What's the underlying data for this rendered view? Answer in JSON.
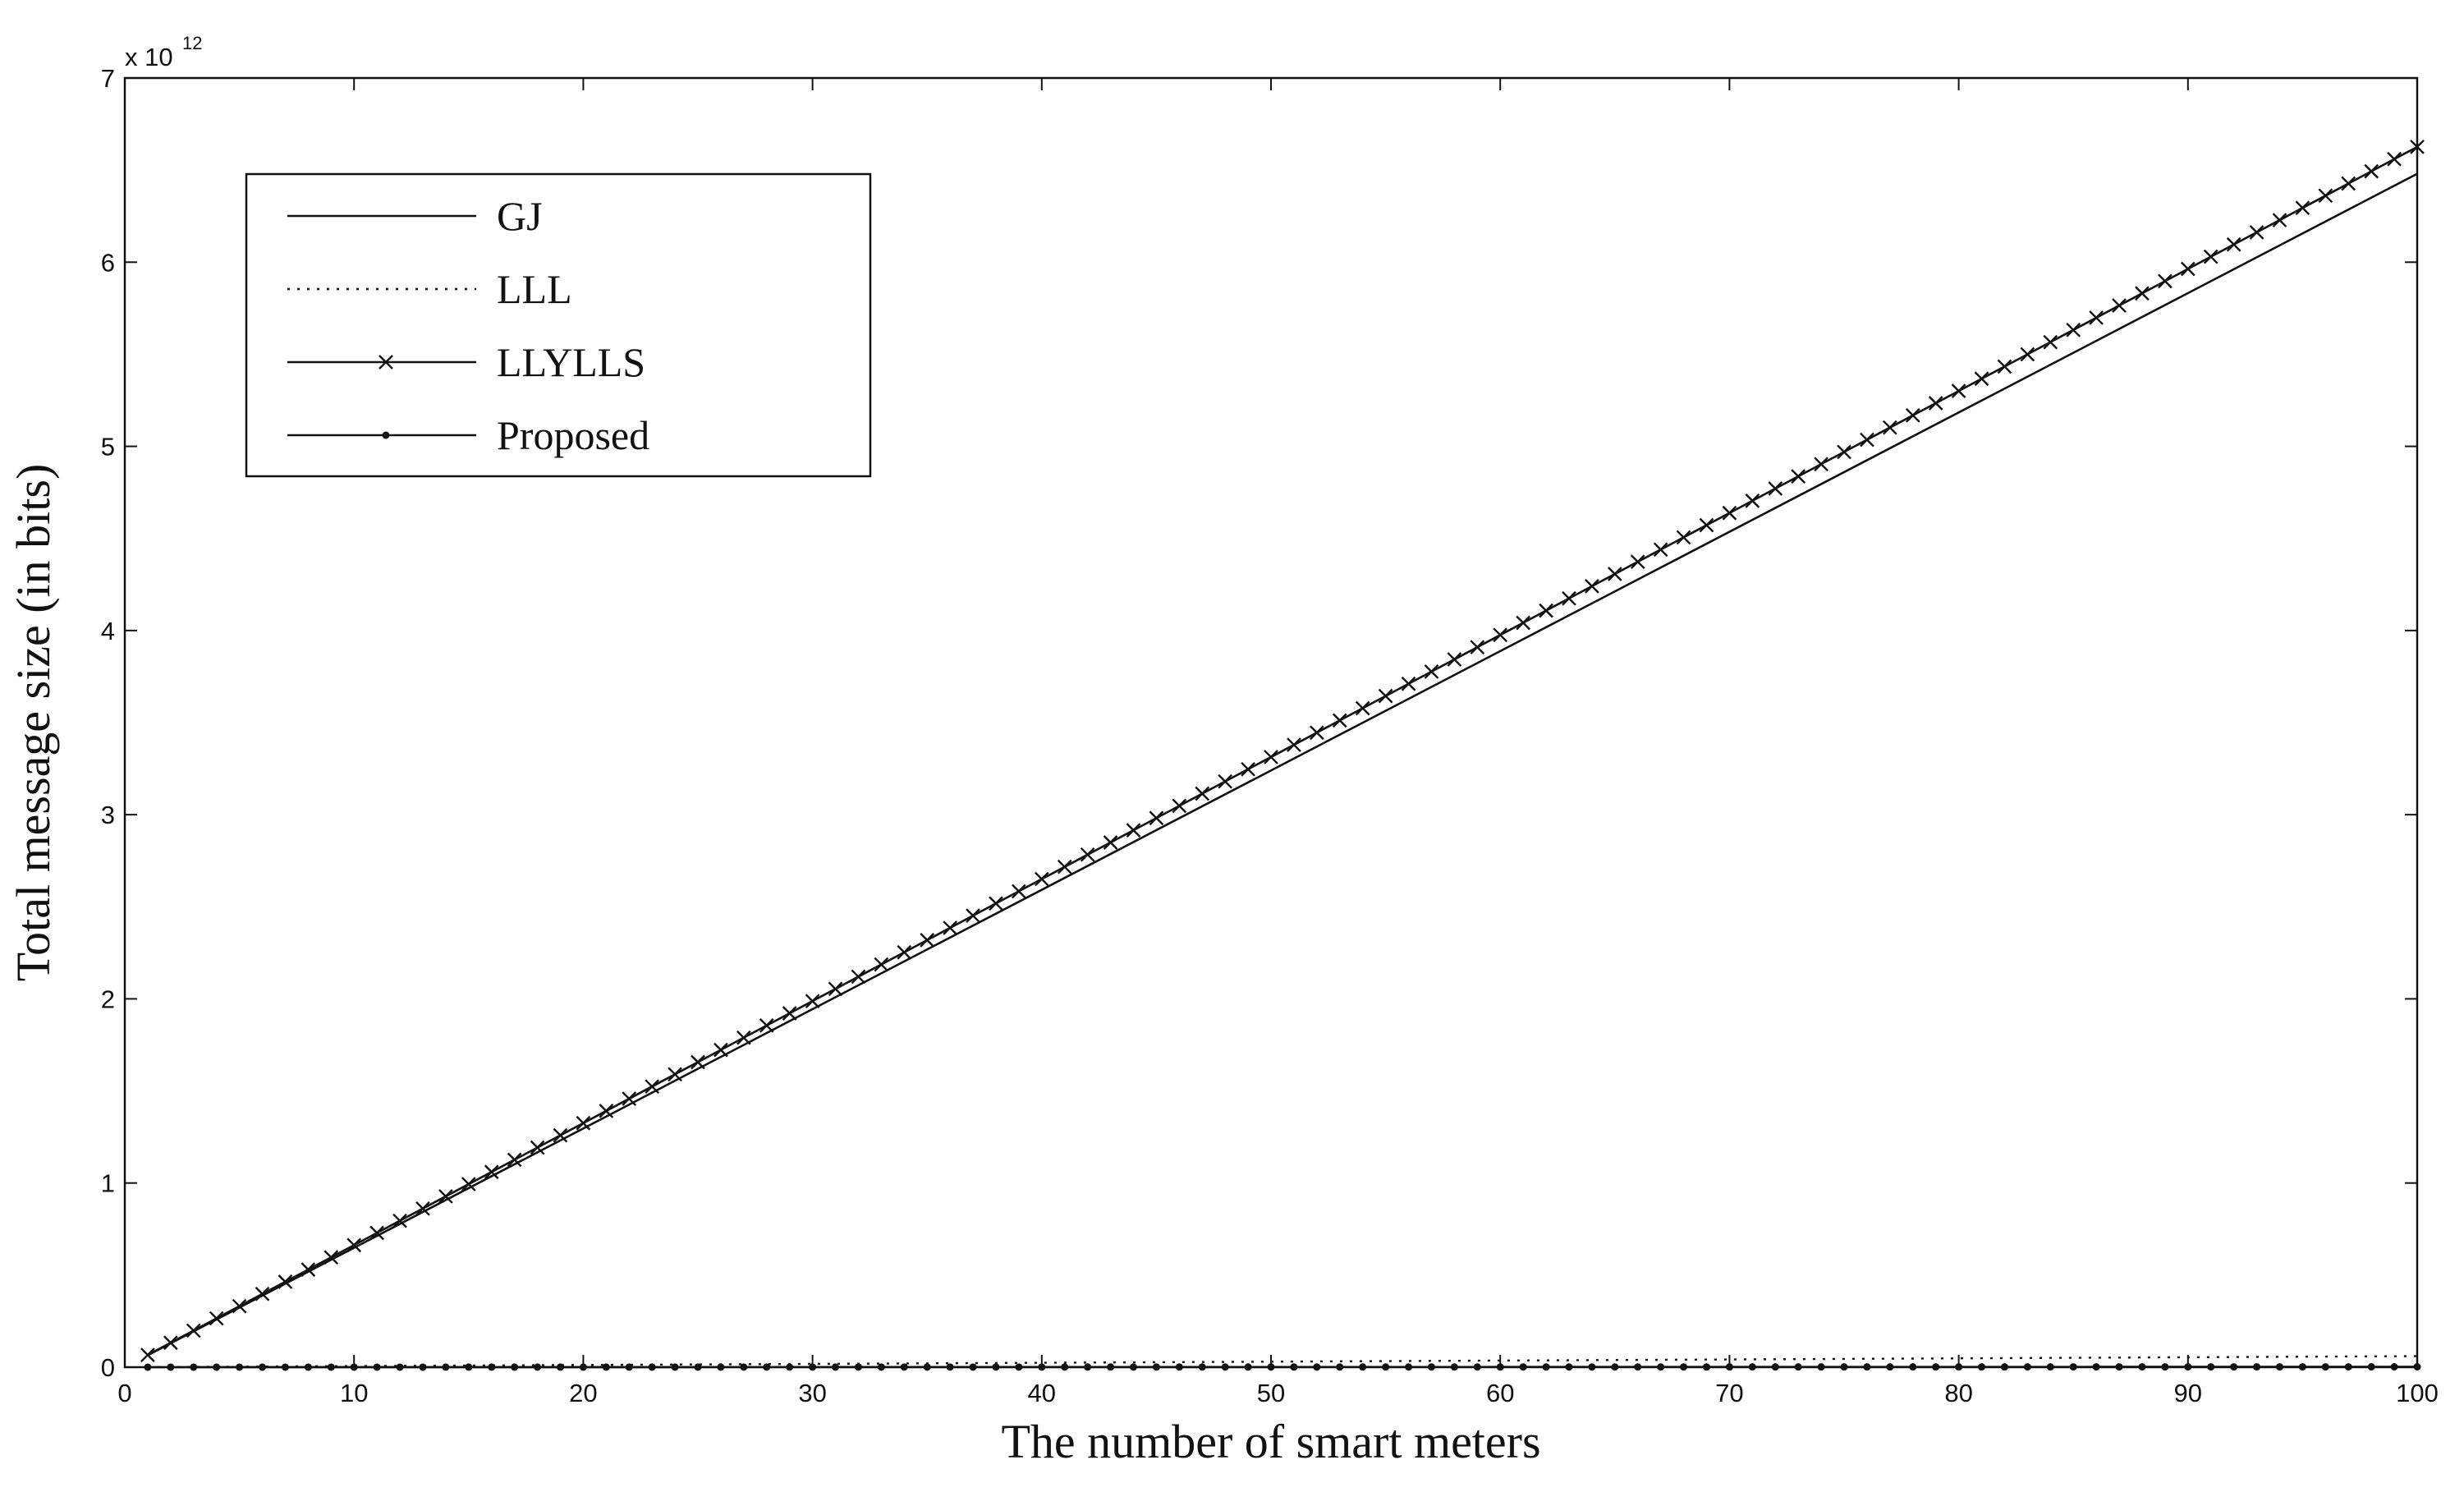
{
  "chart_data": {
    "type": "line",
    "title": "",
    "xlabel": "The number of smart meters",
    "ylabel": "Total message size (in bits)",
    "xlim": [
      0,
      100
    ],
    "ylim": [
      0,
      7
    ],
    "y_scale_exponent": {
      "base": "x 10",
      "power": "12"
    },
    "x_ticks": [
      "0",
      "10",
      "20",
      "30",
      "40",
      "50",
      "60",
      "70",
      "80",
      "90",
      "100"
    ],
    "y_ticks": [
      "0",
      "1",
      "2",
      "3",
      "4",
      "5",
      "6",
      "7"
    ],
    "grid": false,
    "legend_position": "top-left",
    "series": [
      {
        "name": "GJ",
        "style": "solid",
        "marker": "none",
        "x": [
          1,
          100
        ],
        "values": [
          0.065,
          6.48
        ]
      },
      {
        "name": "LLL",
        "style": "dotted",
        "marker": "none",
        "x": [
          1,
          100
        ],
        "values": [
          0.0006,
          0.06
        ]
      },
      {
        "name": "LLYLLS",
        "style": "solid",
        "marker": "x",
        "x_start": 1,
        "x_end": 100,
        "slope": 0.06626,
        "intercept": 0.0
      },
      {
        "name": "Proposed",
        "style": "solid",
        "marker": "dot",
        "x_start": 1,
        "x_end": 100,
        "slope": 2e-05,
        "intercept": 0.0
      }
    ],
    "colors": {
      "line": "#111111",
      "axis": "#111111",
      "background": "#ffffff"
    }
  }
}
